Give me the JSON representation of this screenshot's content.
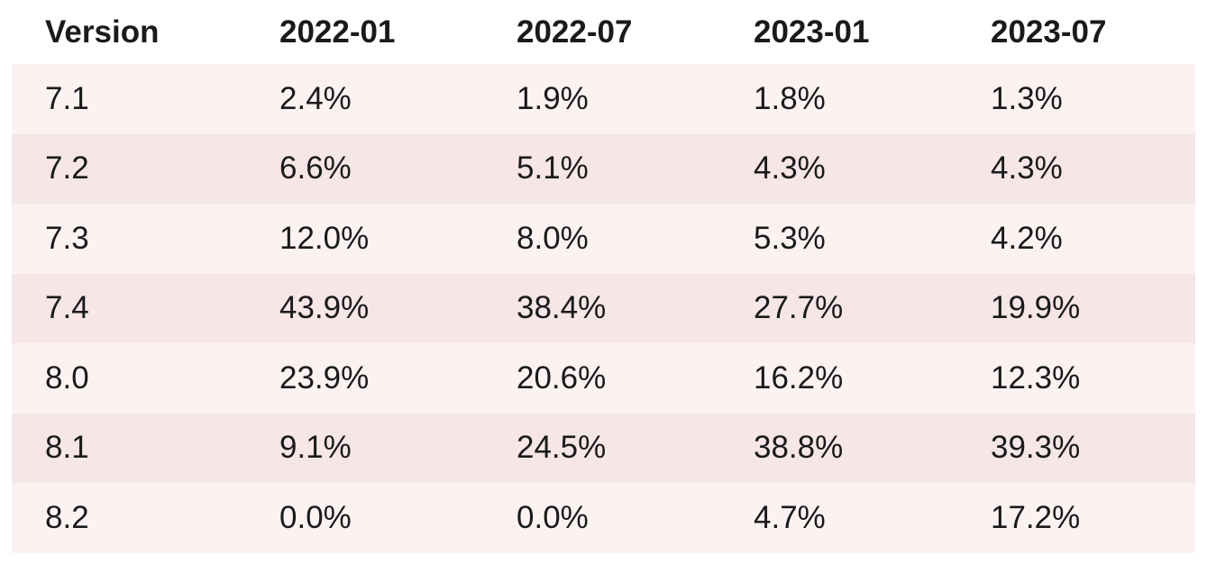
{
  "chart_data": {
    "type": "table",
    "columns": [
      "Version",
      "2022-01",
      "2022-07",
      "2023-01",
      "2023-07"
    ],
    "rows": [
      [
        "7.1",
        "2.4%",
        "1.9%",
        "1.8%",
        "1.3%"
      ],
      [
        "7.2",
        "6.6%",
        "5.1%",
        "4.3%",
        "4.3%"
      ],
      [
        "7.3",
        "12.0%",
        "8.0%",
        "5.3%",
        "4.2%"
      ],
      [
        "7.4",
        "43.9%",
        "38.4%",
        "27.7%",
        "19.9%"
      ],
      [
        "8.0",
        "23.9%",
        "20.6%",
        "16.2%",
        "12.3%"
      ],
      [
        "8.1",
        "9.1%",
        "24.5%",
        "38.8%",
        "39.3%"
      ],
      [
        "8.2",
        "0.0%",
        "0.0%",
        "4.7%",
        "17.2%"
      ]
    ]
  },
  "colors": {
    "row_light": "#fcf2f2",
    "row_dark": "#f6e6e7",
    "header_bg": "#ffffff",
    "text": "#1a1a1a"
  }
}
